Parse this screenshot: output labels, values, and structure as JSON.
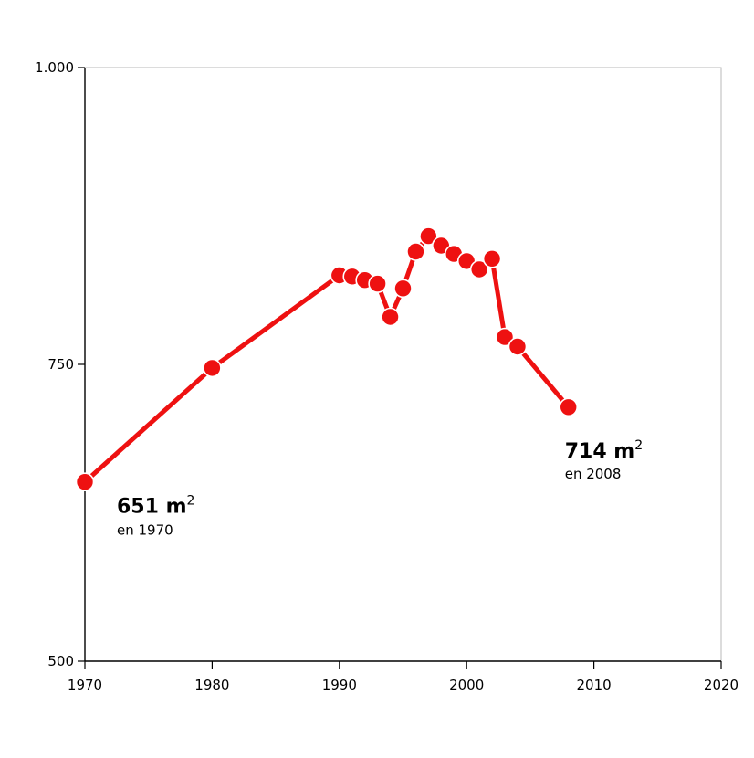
{
  "chart_data": {
    "type": "line",
    "title": "",
    "xlabel": "",
    "ylabel": "",
    "xlim": [
      1970,
      2020
    ],
    "ylim": [
      500,
      1000
    ],
    "x_ticks": [
      1970,
      1980,
      1990,
      2000,
      2010,
      2020
    ],
    "y_ticks": [
      500,
      750,
      1000
    ],
    "y_tick_labels": [
      "500",
      "750",
      "1.000"
    ],
    "grid": false,
    "color": "#ee1111",
    "series": [
      {
        "x": [
          1970,
          1980,
          1990,
          1991,
          1992,
          1993,
          1994,
          1995,
          1996,
          1997,
          1998,
          1999,
          2000,
          2001,
          2002,
          2003,
          2004,
          2008
        ],
        "y": [
          651,
          747,
          825,
          824,
          821,
          818,
          790,
          814,
          845,
          858,
          850,
          843,
          837,
          830,
          839,
          773,
          765,
          714
        ]
      }
    ],
    "annotations": [
      {
        "x": 1970,
        "y": 651,
        "value": "651 m",
        "superscript": "2",
        "sub": "en 1970"
      },
      {
        "x": 2008,
        "y": 714,
        "value": "714 m",
        "superscript": "2",
        "sub": "en 2008"
      }
    ]
  }
}
